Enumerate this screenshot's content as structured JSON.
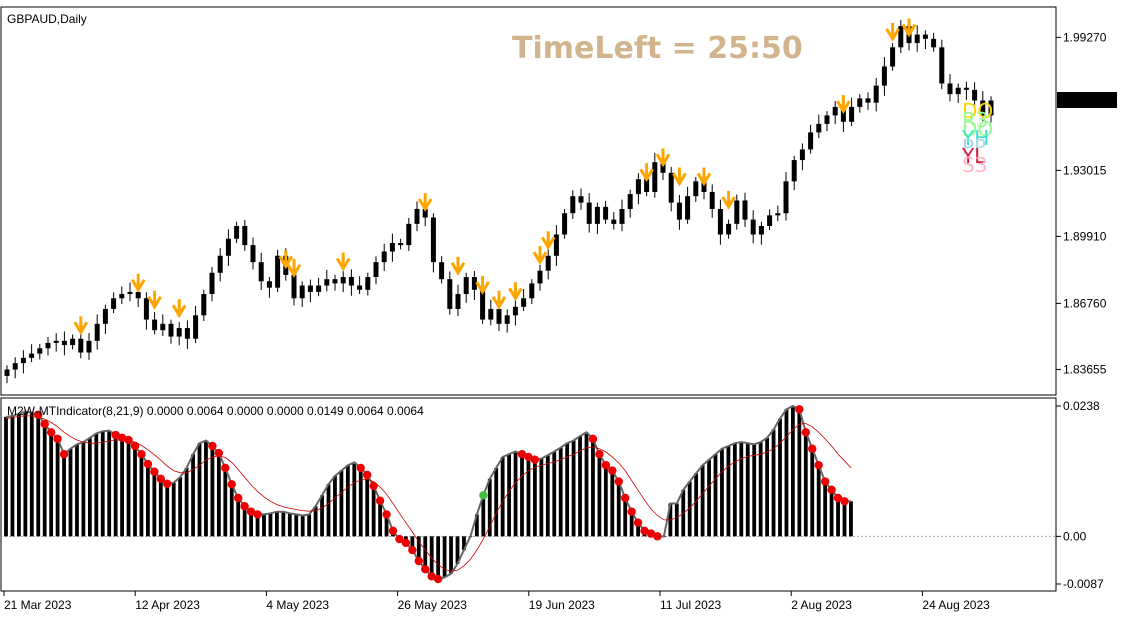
{
  "chart_data": {
    "type": "candlestick",
    "symbol_title": "GBPAUD,Daily",
    "timer_text": "TimeLeft = 25:50",
    "price_axis_ticks": [
      "1.99270",
      "1.96324",
      "1.93015",
      "1.89910",
      "1.86760",
      "1.83655"
    ],
    "price_range": [
      1.825,
      2.0065
    ],
    "current_price": "1.96324",
    "date_labels": [
      "21 Mar 2023",
      "12 Apr 2023",
      "4 May 2023",
      "26 May 2023",
      "19 Jun 2023",
      "11 Jul 2023",
      "2 Aug 2023",
      "24 Aug 2023"
    ],
    "date_label_bars": [
      0,
      16,
      32,
      48,
      64,
      80,
      96,
      112
    ],
    "level_tags": [
      {
        "text": "DO",
        "color": "#ffd700"
      },
      {
        "text": "R3",
        "color": "#98fb98"
      },
      {
        "text": "DO",
        "color": "#98fb98"
      },
      {
        "text": "YH",
        "color": "#40e0d0"
      },
      {
        "text": "PP",
        "color": "#add8e6"
      },
      {
        "text": "YL",
        "color": "#dc143c"
      },
      {
        "text": "S3",
        "color": "#ffb6c1"
      }
    ],
    "close": [
      1.8365,
      1.8395,
      1.842,
      1.844,
      1.8465,
      1.849,
      1.85,
      1.848,
      1.851,
      1.8445,
      1.85,
      1.858,
      1.865,
      1.87,
      1.872,
      1.873,
      1.87,
      1.86,
      1.855,
      1.858,
      1.852,
      1.856,
      1.851,
      1.862,
      1.872,
      1.882,
      1.89,
      1.898,
      1.904,
      1.895,
      1.887,
      1.878,
      1.875,
      1.89,
      1.881,
      1.87,
      1.876,
      1.873,
      1.876,
      1.879,
      1.877,
      1.88,
      1.876,
      1.874,
      1.88,
      1.887,
      1.892,
      1.896,
      1.895,
      1.905,
      1.912,
      1.908,
      1.887,
      1.879,
      1.865,
      1.872,
      1.88,
      1.874,
      1.86,
      1.865,
      1.858,
      1.862,
      1.866,
      1.87,
      1.877,
      1.883,
      1.89,
      1.9,
      1.91,
      1.918,
      1.915,
      1.905,
      1.913,
      1.907,
      1.905,
      1.912,
      1.919,
      1.926,
      1.92,
      1.934,
      1.929,
      1.915,
      1.907,
      1.918,
      1.925,
      1.92,
      1.912,
      1.9,
      1.905,
      1.916,
      1.907,
      1.9,
      1.904,
      1.909,
      1.91,
      1.925,
      1.935,
      1.94,
      1.948,
      1.952,
      1.956,
      1.96,
      1.953,
      1.96,
      1.964,
      1.962,
      1.97,
      1.979,
      1.988,
      1.998,
      1.99,
      1.994,
      1.992,
      1.988,
      1.971,
      1.966,
      1.969,
      1.968,
      1.963,
      1.956,
      1.963
    ],
    "ma_fast": [
      1.831,
      1.834,
      1.837,
      1.8395,
      1.842,
      1.8445,
      1.847,
      1.847,
      1.849,
      1.85,
      1.852,
      1.856,
      1.861,
      1.865,
      1.869,
      1.872,
      1.87,
      1.866,
      1.862,
      1.86,
      1.858,
      1.858,
      1.86,
      1.864,
      1.87,
      1.876,
      1.882,
      1.888,
      1.895,
      1.896,
      1.896,
      1.89,
      1.886,
      1.884,
      1.88,
      1.877,
      1.876,
      1.876,
      1.876,
      1.876,
      1.876,
      1.876,
      1.876,
      1.876,
      1.878,
      1.882,
      1.886,
      1.89,
      1.892,
      1.897,
      1.902,
      1.903,
      1.898,
      1.89,
      1.882,
      1.878,
      1.876,
      1.873,
      1.869,
      1.865,
      1.862,
      1.862,
      1.864,
      1.867,
      1.872,
      1.878,
      1.885,
      1.892,
      1.9,
      1.906,
      1.909,
      1.909,
      1.91,
      1.911,
      1.911,
      1.913,
      1.916,
      1.92,
      1.922,
      1.926,
      1.926,
      1.923,
      1.92,
      1.92,
      1.92,
      1.919,
      1.916,
      1.911,
      1.909,
      1.909,
      1.908,
      1.906,
      1.906,
      1.907,
      1.909,
      1.915,
      1.922,
      1.929,
      1.936,
      1.942,
      1.947,
      1.952,
      1.954,
      1.956,
      1.959,
      1.961,
      1.965,
      1.97,
      1.977,
      1.983,
      1.986,
      1.987,
      1.988,
      1.986,
      1.981,
      1.974,
      1.97,
      1.969,
      1.966,
      1.96,
      1.959
    ],
    "oscillator": {
      "title": "M2W-MTIndicator(8,21,9) 0.0000 0.0064 0.0000 0.0000 0.0149 0.0064 0.0064",
      "axis_ticks": [
        "0.0238",
        "0.00",
        "-0.0087"
      ],
      "range": [
        -0.0087,
        0.0238
      ],
      "histogram": [
        0.0218,
        0.022,
        0.0224,
        0.0228,
        0.0226,
        0.0222,
        0.0205,
        0.019,
        0.0178,
        0.015,
        0.016,
        0.0168,
        0.0172,
        0.018,
        0.0188,
        0.0192,
        0.0193,
        0.0185,
        0.018,
        0.0176,
        0.0165,
        0.015,
        0.0132,
        0.0118,
        0.0105,
        0.0096,
        0.0098,
        0.0108,
        0.0125,
        0.015,
        0.017,
        0.0175,
        0.0165,
        0.0152,
        0.0125,
        0.0095,
        0.007,
        0.0055,
        0.0045,
        0.004,
        0.004,
        0.0042,
        0.0045,
        0.0045,
        0.0042,
        0.004,
        0.0038,
        0.004,
        0.0055,
        0.0075,
        0.0095,
        0.011,
        0.012,
        0.013,
        0.0135,
        0.0125,
        0.0112,
        0.0092,
        0.0065,
        0.004,
        0.001,
        -0.0005,
        -0.0012,
        -0.0025,
        -0.0045,
        -0.006,
        -0.0073,
        -0.0078,
        -0.0075,
        -0.0068,
        -0.005,
        -0.0025,
        0.0,
        0.004,
        0.0075,
        0.0105,
        0.0125,
        0.0145,
        0.015,
        0.0155,
        0.015,
        0.0145,
        0.014,
        0.0142,
        0.0148,
        0.0155,
        0.0162,
        0.017,
        0.0175,
        0.0183,
        0.019,
        0.0178,
        0.015,
        0.013,
        0.012,
        0.01,
        0.007,
        0.0045,
        0.0025,
        0.001,
        0.0005,
        0.0,
        0.0,
        0.006,
        0.006,
        0.0085,
        0.01,
        0.0115,
        0.013,
        0.014,
        0.015,
        0.016,
        0.0165,
        0.017,
        0.0172,
        0.017,
        0.0168,
        0.0172,
        0.018,
        0.0195,
        0.0215,
        0.0232,
        0.0238,
        0.0232,
        0.019,
        0.016,
        0.013,
        0.01,
        0.0085,
        0.007,
        0.0064,
        0.0064
      ],
      "signal": [
        0.0215,
        0.0217,
        0.0219,
        0.022,
        0.022,
        0.0218,
        0.0214,
        0.0208,
        0.02,
        0.019,
        0.0182,
        0.0176,
        0.0172,
        0.017,
        0.017,
        0.0172,
        0.0174,
        0.0176,
        0.0176,
        0.0175,
        0.0172,
        0.0166,
        0.0158,
        0.0149,
        0.0139,
        0.0128,
        0.012,
        0.0116,
        0.0116,
        0.0122,
        0.013,
        0.0139,
        0.0145,
        0.0147,
        0.0144,
        0.0135,
        0.0122,
        0.0108,
        0.0094,
        0.0082,
        0.0072,
        0.0064,
        0.0058,
        0.0054,
        0.0051,
        0.0049,
        0.0047,
        0.0046,
        0.0047,
        0.0052,
        0.006,
        0.007,
        0.008,
        0.009,
        0.0098,
        0.0103,
        0.0104,
        0.01,
        0.009,
        0.0077,
        0.006,
        0.0042,
        0.0025,
        0.0008,
        -0.001,
        -0.0025,
        -0.004,
        -0.0052,
        -0.006,
        -0.0064,
        -0.0062,
        -0.0054,
        -0.0042,
        -0.0025,
        -0.0005,
        0.0018,
        0.0042,
        0.0064,
        0.0082,
        0.0098,
        0.011,
        0.012,
        0.0126,
        0.013,
        0.0133,
        0.0136,
        0.014,
        0.0145,
        0.015,
        0.0156,
        0.0162,
        0.0163,
        0.016,
        0.0154,
        0.0145,
        0.0134,
        0.012,
        0.0102,
        0.0084,
        0.0066,
        0.005,
        0.0038,
        0.003,
        0.003,
        0.0034,
        0.0042,
        0.0052,
        0.0064,
        0.0078,
        0.0092,
        0.0105,
        0.0118,
        0.0128,
        0.0136,
        0.0142,
        0.0146,
        0.0148,
        0.015,
        0.0154,
        0.016,
        0.017,
        0.0182,
        0.0195,
        0.0205,
        0.0206,
        0.02,
        0.019,
        0.0178,
        0.0165,
        0.015,
        0.0138,
        0.0125
      ],
      "bull_color": "#22dd00",
      "bear_color": "#dd0000",
      "fast_line_color": "#40e0ff",
      "slow_line_color": "#ff9900"
    }
  }
}
